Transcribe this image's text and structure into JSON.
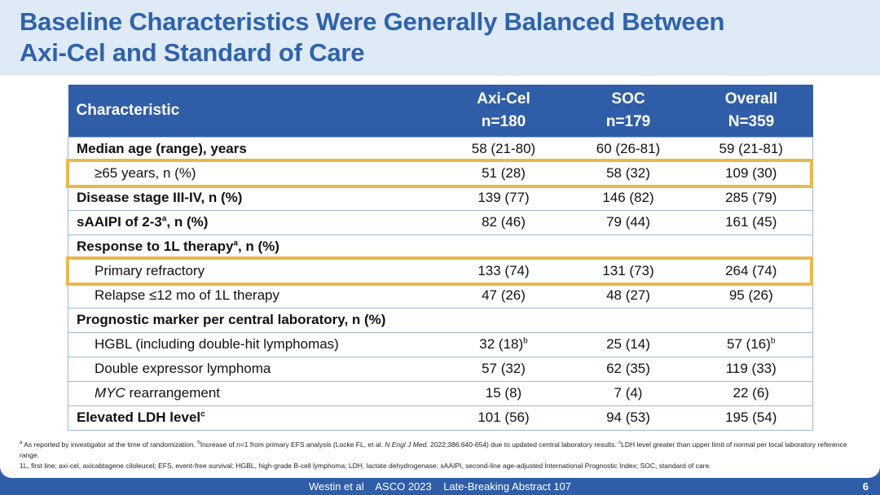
{
  "title_line1": "Baseline Characteristics Were Generally Balanced Between",
  "title_line2": "Axi-Cel and Standard of Care",
  "table": {
    "headers": [
      {
        "l1": "Characteristic",
        "l2": ""
      },
      {
        "l1": "Axi-Cel",
        "l2": "n=180"
      },
      {
        "l1": "SOC",
        "l2": "n=179"
      },
      {
        "l1": "Overall",
        "l2": "N=359"
      }
    ],
    "rows": [
      {
        "label": "Median age (range), years",
        "sup": "",
        "bold": true,
        "indent": false,
        "italic_prefix": "",
        "vals": [
          "58 (21-80)",
          "60 (26-81)",
          "59 (21-81)"
        ],
        "sups": [
          "",
          "",
          ""
        ]
      },
      {
        "label": "≥65 years, n (%)",
        "sup": "",
        "bold": false,
        "indent": true,
        "italic_prefix": "",
        "vals": [
          "51 (28)",
          "58 (32)",
          "109 (30)"
        ],
        "sups": [
          "",
          "",
          ""
        ],
        "highlight": true
      },
      {
        "label": "Disease stage III-IV, n (%)",
        "sup": "",
        "bold": true,
        "indent": false,
        "italic_prefix": "",
        "vals": [
          "139 (77)",
          "146 (82)",
          "285 (79)"
        ],
        "sups": [
          "",
          "",
          ""
        ]
      },
      {
        "label": "sAAIPI of 2-3",
        "sup": "a",
        "suffix": ", n (%)",
        "bold": true,
        "indent": false,
        "italic_prefix": "",
        "vals": [
          "82 (46)",
          "79 (44)",
          "161 (45)"
        ],
        "sups": [
          "",
          "",
          ""
        ]
      },
      {
        "label": "Response to 1L therapy",
        "sup": "a",
        "suffix": ", n (%)",
        "bold": true,
        "indent": false,
        "italic_prefix": "",
        "vals": [
          "",
          "",
          ""
        ],
        "sups": [
          "",
          "",
          ""
        ]
      },
      {
        "label": "Primary refractory",
        "sup": "",
        "bold": false,
        "indent": true,
        "italic_prefix": "",
        "vals": [
          "133 (74)",
          "131 (73)",
          "264 (74)"
        ],
        "sups": [
          "",
          "",
          ""
        ],
        "highlight": true
      },
      {
        "label": "Relapse ≤12 mo of 1L therapy",
        "sup": "",
        "bold": false,
        "indent": true,
        "italic_prefix": "",
        "vals": [
          "47 (26)",
          "48 (27)",
          "95 (26)"
        ],
        "sups": [
          "",
          "",
          ""
        ]
      },
      {
        "label": "Prognostic marker per central laboratory, n (%)",
        "sup": "",
        "bold": true,
        "indent": false,
        "italic_prefix": "",
        "vals": [
          "",
          "",
          ""
        ],
        "sups": [
          "",
          "",
          ""
        ]
      },
      {
        "label": "HGBL (including double-hit lymphomas)",
        "sup": "",
        "bold": false,
        "indent": true,
        "italic_prefix": "",
        "vals": [
          "32 (18)",
          "25 (14)",
          "57 (16)"
        ],
        "sups": [
          "b",
          "",
          "b"
        ]
      },
      {
        "label": "Double expressor lymphoma",
        "sup": "",
        "bold": false,
        "indent": true,
        "italic_prefix": "",
        "vals": [
          "57 (32)",
          "62 (35)",
          "119 (33)"
        ],
        "sups": [
          "",
          "",
          ""
        ]
      },
      {
        "label": " rearrangement",
        "sup": "",
        "bold": false,
        "indent": true,
        "italic_prefix": "MYC",
        "vals": [
          "15 (8)",
          "7 (4)",
          "22 (6)"
        ],
        "sups": [
          "",
          "",
          ""
        ]
      },
      {
        "label": "Elevated LDH level",
        "sup": "c",
        "bold": true,
        "indent": false,
        "italic_prefix": "",
        "vals": [
          "101 (56)",
          "94 (53)",
          "195 (54)"
        ],
        "sups": [
          "",
          "",
          ""
        ]
      }
    ]
  },
  "notes": {
    "a": "As reported by investigator at the time of randomization.",
    "b1": "Increase of n=1 from primary EFS analysis (Locke FL, et al.",
    "b_journal": "N Engl J Med.",
    "b2": "2022;386:640-654) due to updated central laboratory results.",
    "c": "LDH level greater than upper limit of normal per local laboratory reference range.",
    "abbrev": "1L, first line; axi-cel, axicabtagene ciloleucel; EFS, event-free survival; HGBL, high-grade B-cell lymphoma; LDH, lactate dehydrogenase; sAAIPI, second-line age-adjusted International Prognostic Index; SOC, standard of care."
  },
  "footer": {
    "authors": "Westin et al",
    "meeting": "ASCO 2023",
    "abstract": "Late-Breaking Abstract 107",
    "page": "6"
  },
  "colors": {
    "brand_blue": "#2F5DA8",
    "title_blue": "#2E62AE",
    "highlight": "#E8B84B",
    "title_band": "#DEEAF6"
  }
}
